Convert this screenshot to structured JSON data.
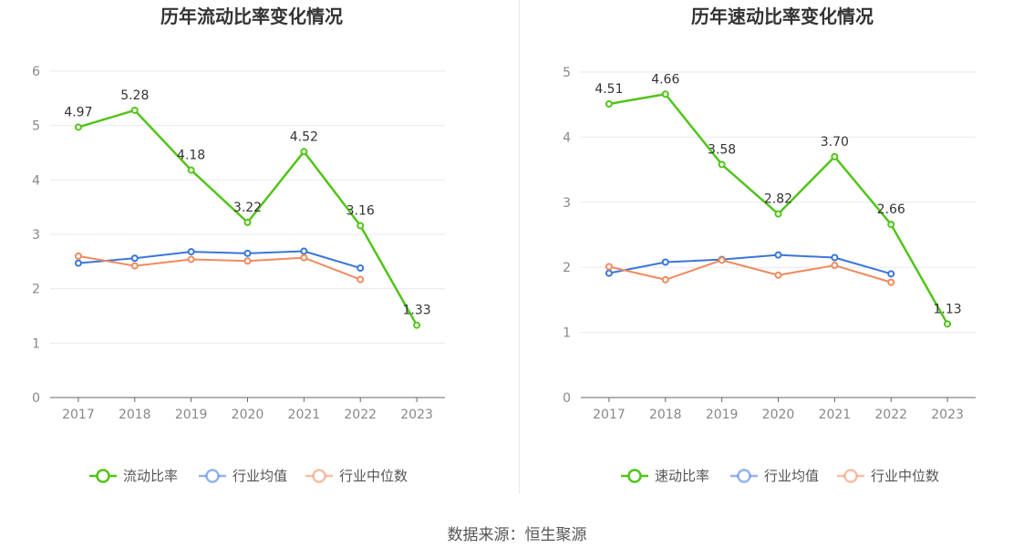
{
  "footer": {
    "source": "数据来源：恒生聚源"
  },
  "colors": {
    "primary": "#52c41a",
    "avg": "#3a76d8",
    "median": "#f08a5d",
    "grid": "#e6e9f0",
    "axis": "#666666"
  },
  "chart_data": [
    {
      "type": "line",
      "title": "历年流动比率变化情况",
      "categories": [
        "2017",
        "2018",
        "2019",
        "2020",
        "2021",
        "2022",
        "2023"
      ],
      "ylim": [
        0,
        6
      ],
      "yticks": [
        0,
        1,
        2,
        3,
        4,
        5,
        6
      ],
      "grid": true,
      "legend_position": "bottom",
      "series": [
        {
          "name": "流动比率",
          "color": "#52c41a",
          "values": [
            4.97,
            5.28,
            4.18,
            3.22,
            4.52,
            3.16,
            1.33
          ],
          "labels": [
            "4.97",
            "5.28",
            "4.18",
            "3.22",
            "4.52",
            "3.16",
            "1.33"
          ]
        },
        {
          "name": "行业均值",
          "color": "#3a76d8",
          "values": [
            2.47,
            2.56,
            2.68,
            2.65,
            2.69,
            2.38,
            null
          ]
        },
        {
          "name": "行业中位数",
          "color": "#f08a5d",
          "values": [
            2.6,
            2.42,
            2.54,
            2.51,
            2.57,
            2.17,
            null
          ]
        }
      ]
    },
    {
      "type": "line",
      "title": "历年速动比率变化情况",
      "categories": [
        "2017",
        "2018",
        "2019",
        "2020",
        "2021",
        "2022",
        "2023"
      ],
      "ylim": [
        0,
        5
      ],
      "yticks": [
        0,
        1,
        2,
        3,
        4,
        5
      ],
      "grid": true,
      "legend_position": "bottom",
      "series": [
        {
          "name": "速动比率",
          "color": "#52c41a",
          "values": [
            4.51,
            4.66,
            3.58,
            2.82,
            3.7,
            2.66,
            1.13
          ],
          "labels": [
            "4.51",
            "4.66",
            "3.58",
            "2.82",
            "3.70",
            "2.66",
            "1.13"
          ]
        },
        {
          "name": "行业均值",
          "color": "#3a76d8",
          "values": [
            1.91,
            2.08,
            2.12,
            2.19,
            2.15,
            1.9,
            null
          ]
        },
        {
          "name": "行业中位数",
          "color": "#f08a5d",
          "values": [
            2.01,
            1.81,
            2.11,
            1.88,
            2.03,
            1.77,
            null
          ]
        }
      ]
    }
  ]
}
